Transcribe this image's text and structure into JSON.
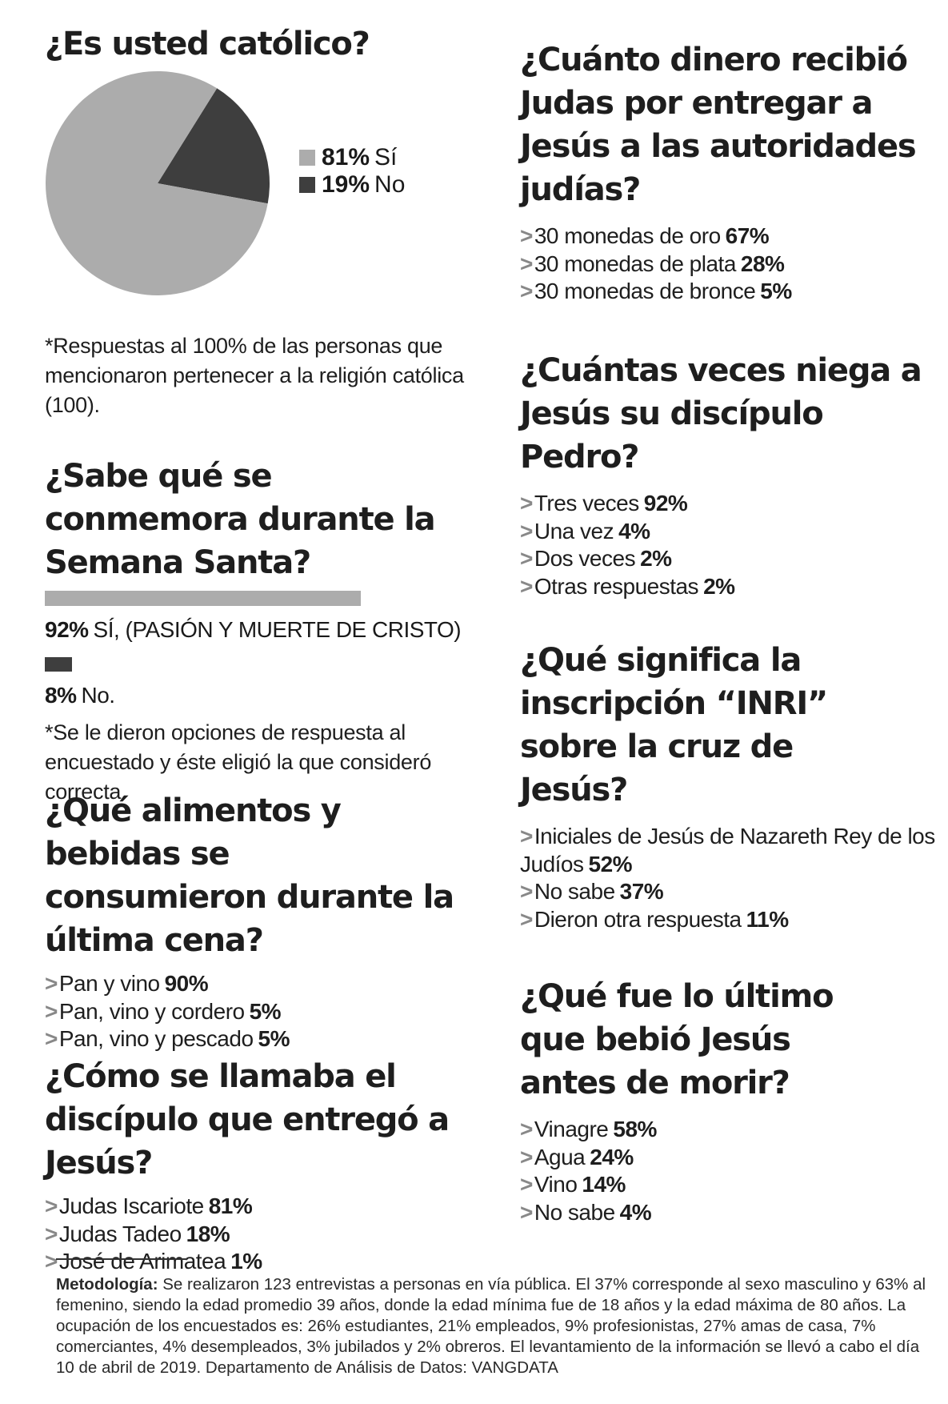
{
  "colors": {
    "light": "#acacac",
    "dark": "#3e3e3e",
    "text": "#1e1e1e",
    "arrow": "#888888"
  },
  "q_catolico": {
    "title": "¿Es usted católico?",
    "legend": [
      {
        "pct": "81%",
        "label": "Sí",
        "value": 81,
        "color": "#acacac"
      },
      {
        "pct": "19%",
        "label": "No",
        "value": 19,
        "color": "#3e3e3e"
      }
    ],
    "note": "*Respuestas al 100% de las personas que mencionaron pertenecer a la religión católica (100)."
  },
  "chart_data": {
    "type": "pie",
    "title": "¿Es usted católico?",
    "labels": [
      "Sí",
      "No"
    ],
    "values": [
      81,
      19
    ],
    "colors": [
      "#acacac",
      "#3e3e3e"
    ]
  },
  "q_semana": {
    "title": "¿Sabe qué se conmemora durante la Semana Santa?",
    "bars": [
      {
        "pct": "92%",
        "label": "SÍ, (PASIÓN Y MUERTE DE CRISTO)",
        "value": 92
      },
      {
        "pct": "8%",
        "label": "No.",
        "value": 8
      }
    ],
    "note": "*Se le dieron opciones de respuesta al encuestado y éste eligió la que consideró correcta."
  },
  "q_alimentos": {
    "title": "¿Qué alimentos y bebidas se consumieron durante la última cena?",
    "answers": [
      {
        "text": "Pan y vino",
        "pct": "90%"
      },
      {
        "text": "Pan, vino y cordero",
        "pct": "5%"
      },
      {
        "text": "Pan, vino y pescado",
        "pct": "5%"
      }
    ]
  },
  "q_discipulo": {
    "title": "¿Cómo se llamaba el discípulo que entregó a Jesús?",
    "answers": [
      {
        "text": "Judas Iscariote",
        "pct": "81%"
      },
      {
        "text": "Judas Tadeo",
        "pct": "18%"
      },
      {
        "text": "José de Arimatea",
        "pct": "1%"
      }
    ]
  },
  "q_dinero": {
    "title": "¿Cuánto dinero recibió Judas por entregar a Jesús a las autoridades judías?",
    "answers": [
      {
        "text": "30 monedas de oro",
        "pct": "67%"
      },
      {
        "text": "30 monedas de plata",
        "pct": "28%"
      },
      {
        "text": "30 monedas de bronce",
        "pct": "5%"
      }
    ]
  },
  "q_pedro": {
    "title": "¿Cuántas veces niega a Jesús su discípulo Pedro?",
    "answers": [
      {
        "text": "Tres veces",
        "pct": "92%"
      },
      {
        "text": "Una vez",
        "pct": "4%"
      },
      {
        "text": "Dos veces",
        "pct": "2%"
      },
      {
        "text": "Otras respuestas",
        "pct": "2%"
      }
    ]
  },
  "q_inri": {
    "title": "¿Qué significa la inscripción “INRI” sobre la cruz de Jesús?",
    "answers": [
      {
        "text": "Iniciales de Jesús de Nazareth Rey de los Judíos",
        "pct": "52%"
      },
      {
        "text": "No sabe",
        "pct": "37%"
      },
      {
        "text": "Dieron otra respuesta",
        "pct": "11%"
      }
    ]
  },
  "q_bebio": {
    "title": "¿Qué fue lo último que bebió Jesús antes de morir?",
    "answers": [
      {
        "text": "Vinagre",
        "pct": "58%"
      },
      {
        "text": "Agua",
        "pct": "24%"
      },
      {
        "text": "Vino",
        "pct": "14%"
      },
      {
        "text": "No sabe",
        "pct": "4%"
      }
    ]
  },
  "methodology": {
    "label": "Metodología:",
    "text": "Se realizaron 123 entrevistas a personas en vía pública. El 37% corresponde al sexo masculino y 63% al femenino, siendo la edad promedio 39 años, donde la edad mínima fue de 18 años y la edad máxima de 80 años. La ocupación de los encuestados es: 26% estudiantes, 21% empleados, 9% profesionistas, 27% amas de casa, 7% comerciantes, 4% desempleados, 3% jubilados y 2% obreros. El levantamiento de la información se llevó a cabo el día 10 de abril de 2019. Departamento de Análisis de Datos: VANGDATA"
  }
}
